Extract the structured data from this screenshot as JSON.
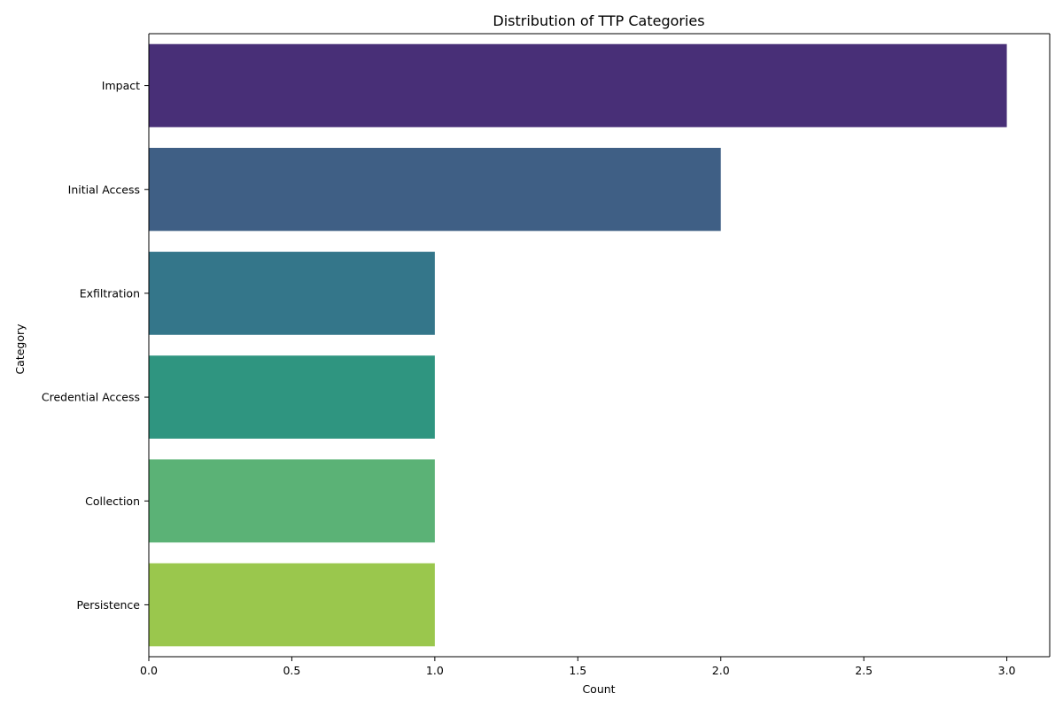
{
  "chart_data": {
    "type": "bar",
    "orientation": "horizontal",
    "title": "Distribution of TTP Categories",
    "xlabel": "Count",
    "ylabel": "Category",
    "categories": [
      "Impact",
      "Initial Access",
      "Exfiltration",
      "Credential Access",
      "Collection",
      "Persistence"
    ],
    "values": [
      3,
      2,
      1,
      1,
      1,
      1
    ],
    "colors": [
      "#482f77",
      "#3f5f85",
      "#34768a",
      "#2f9580",
      "#5bb276",
      "#9ac74d"
    ],
    "xlim": [
      0,
      3.15
    ],
    "xticks": [
      0.0,
      0.5,
      1.0,
      1.5,
      2.0,
      2.5,
      3.0
    ],
    "xtick_labels": [
      "0.0",
      "0.5",
      "1.0",
      "1.5",
      "2.0",
      "2.5",
      "3.0"
    ],
    "grid": false,
    "legend": "none"
  }
}
